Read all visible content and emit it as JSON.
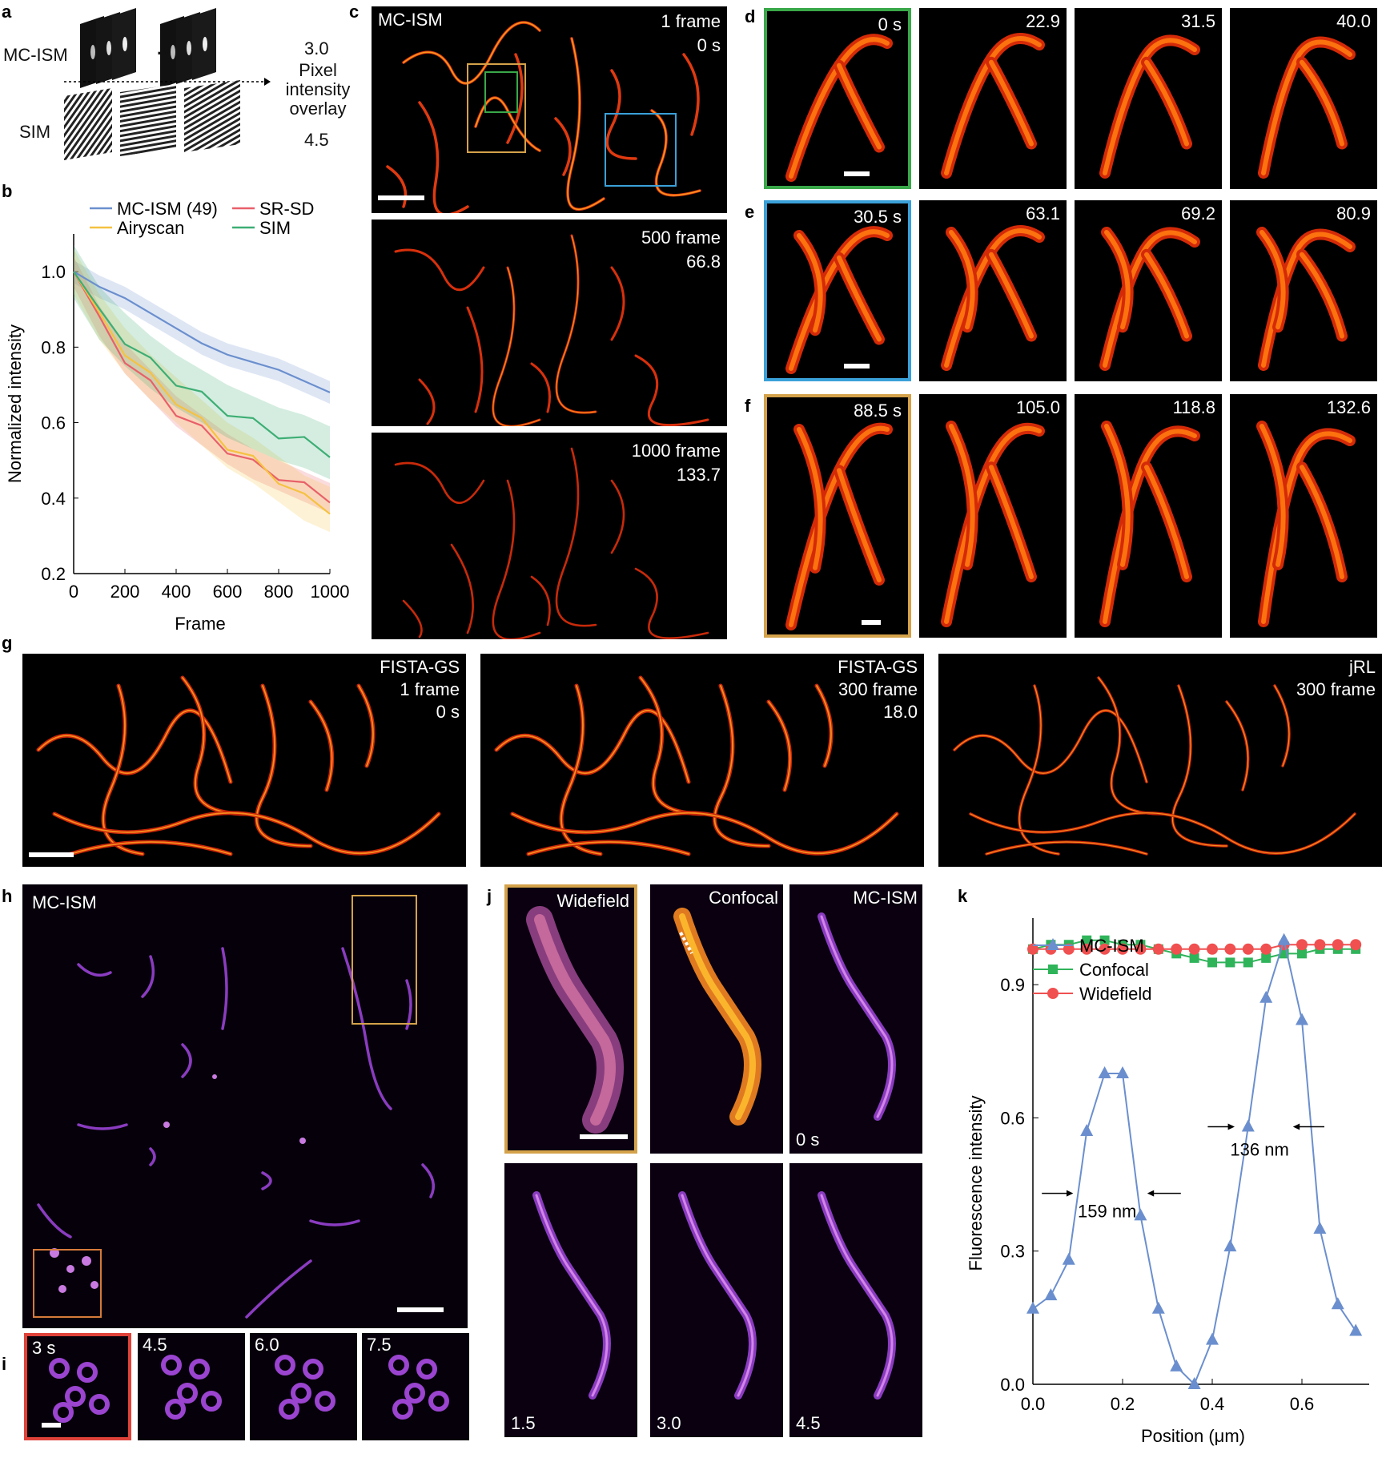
{
  "panel_labels": {
    "a": "a",
    "b": "b",
    "c": "c",
    "d": "d",
    "e": "e",
    "f": "f",
    "g": "g",
    "h": "h",
    "i": "i",
    "j": "j",
    "k": "k"
  },
  "panel_a": {
    "row1": "MC-ISM",
    "row2": "SIM",
    "ellipsis": "...",
    "val_top": "3.0",
    "overlay_label_1": "Pixel",
    "overlay_label_2": "intensity",
    "overlay_label_3": "overlay",
    "val_bottom": "4.5"
  },
  "panel_c": {
    "top_left": "MC-ISM",
    "frames": [
      {
        "label": "1 frame",
        "time": "0 s"
      },
      {
        "label": "500 frame",
        "time": "66.8"
      },
      {
        "label": "1000 frame",
        "time": "133.7"
      }
    ]
  },
  "panel_d": {
    "times": [
      "0 s",
      "22.9",
      "31.5",
      "40.0"
    ]
  },
  "panel_e": {
    "times": [
      "30.5 s",
      "63.1",
      "69.2",
      "80.9"
    ]
  },
  "panel_f": {
    "times": [
      "88.5 s",
      "105.0",
      "118.8",
      "132.6"
    ]
  },
  "panel_g": [
    {
      "line1": "FISTA-GS",
      "line2": "1 frame",
      "line3": "0 s"
    },
    {
      "line1": "FISTA-GS",
      "line2": "300 frame",
      "line3": "18.0"
    },
    {
      "line1": "jRL",
      "line2": "300 frame",
      "line3": ""
    }
  ],
  "panel_h": {
    "label": "MC-ISM"
  },
  "panel_i": {
    "times": [
      "3 s",
      "4.5",
      "6.0",
      "7.5"
    ]
  },
  "panel_j": {
    "top": [
      "Widefield",
      "Confocal",
      "MC-ISM"
    ],
    "top_time": "0 s",
    "bottom_times": [
      "1.5",
      "3.0",
      "4.5"
    ]
  },
  "colors": {
    "mcism": "#6b8fce",
    "srsd": "#e8606a",
    "airyscan": "#f5c242",
    "sim": "#3dae74",
    "confocal": "#2fb45a",
    "widefield": "#f05050",
    "box_gold": "#d4a24a",
    "box_green": "#3aa84a",
    "box_blue": "#3aa0d8",
    "box_orange": "#d67a3a",
    "box_red": "#e0423a"
  },
  "chart_data": [
    {
      "type": "line",
      "xlabel": "Frame",
      "ylabel": "Normalized  intensity",
      "xlim": [
        0,
        1000
      ],
      "ylim": [
        0.2,
        1.1
      ],
      "xticks": [
        "0",
        "200",
        "400",
        "600",
        "800",
        "1000"
      ],
      "yticks": [
        "0.2",
        "0.4",
        "0.6",
        "0.8",
        "1.0"
      ],
      "legend_position": "top",
      "x": [
        0,
        100,
        200,
        300,
        400,
        500,
        600,
        700,
        800,
        900,
        1000
      ],
      "series": [
        {
          "name": "MC-ISM (49)",
          "values": [
            1.0,
            0.96,
            0.93,
            0.89,
            0.85,
            0.81,
            0.78,
            0.76,
            0.74,
            0.71,
            0.68
          ]
        },
        {
          "name": "SR-SD",
          "values": [
            1.0,
            0.87,
            0.77,
            0.7,
            0.63,
            0.58,
            0.53,
            0.49,
            0.46,
            0.43,
            0.4
          ]
        },
        {
          "name": "Airyscan",
          "values": [
            1.0,
            0.88,
            0.79,
            0.72,
            0.66,
            0.6,
            0.54,
            0.5,
            0.45,
            0.4,
            0.37
          ]
        },
        {
          "name": "SIM",
          "values": [
            1.0,
            0.89,
            0.82,
            0.76,
            0.71,
            0.67,
            0.63,
            0.6,
            0.57,
            0.55,
            0.52
          ]
        }
      ]
    },
    {
      "type": "line",
      "xlabel": "Position (μm)",
      "ylabel": "Fluorescence intensity",
      "xlim": [
        0,
        0.75
      ],
      "ylim": [
        0,
        1.05
      ],
      "xticks": [
        "0.0",
        "0.2",
        "0.4",
        "0.6"
      ],
      "yticks": [
        "0.0",
        "0.3",
        "0.6",
        "0.9"
      ],
      "legend_position": "top",
      "annotations": [
        "159 nm",
        "136 nm"
      ],
      "series": [
        {
          "name": "MC-ISM",
          "x": [
            0,
            0.04,
            0.08,
            0.12,
            0.16,
            0.2,
            0.24,
            0.28,
            0.32,
            0.36,
            0.4,
            0.44,
            0.48,
            0.52,
            0.56,
            0.6,
            0.64,
            0.68,
            0.72
          ],
          "values": [
            0.17,
            0.2,
            0.28,
            0.57,
            0.7,
            0.7,
            0.38,
            0.17,
            0.04,
            0.0,
            0.1,
            0.31,
            0.58,
            0.87,
            1.0,
            0.82,
            0.35,
            0.18,
            0.12
          ]
        },
        {
          "name": "Confocal",
          "x": [
            0,
            0.04,
            0.08,
            0.12,
            0.16,
            0.2,
            0.24,
            0.28,
            0.32,
            0.36,
            0.4,
            0.44,
            0.48,
            0.52,
            0.56,
            0.6,
            0.64,
            0.68,
            0.72
          ],
          "values": [
            0.98,
            0.99,
            0.99,
            1.0,
            1.0,
            0.99,
            0.99,
            0.98,
            0.97,
            0.96,
            0.95,
            0.95,
            0.95,
            0.96,
            0.97,
            0.97,
            0.98,
            0.98,
            0.98
          ]
        },
        {
          "name": "Widefield",
          "x": [
            0,
            0.04,
            0.08,
            0.12,
            0.16,
            0.2,
            0.24,
            0.28,
            0.32,
            0.36,
            0.4,
            0.44,
            0.48,
            0.52,
            0.56,
            0.6,
            0.64,
            0.68,
            0.72
          ],
          "values": [
            0.98,
            0.98,
            0.98,
            0.98,
            0.98,
            0.98,
            0.98,
            0.98,
            0.98,
            0.98,
            0.98,
            0.98,
            0.98,
            0.98,
            0.99,
            0.99,
            0.99,
            0.99,
            0.99
          ]
        }
      ]
    }
  ]
}
